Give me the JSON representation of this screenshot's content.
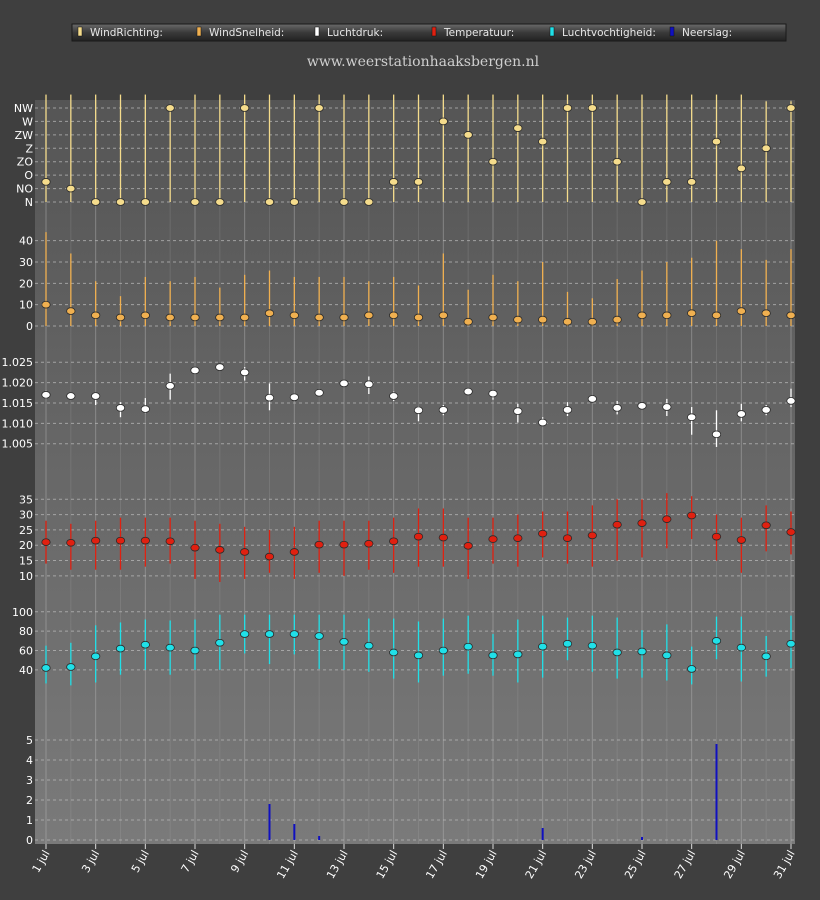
{
  "site_title": "www.weerstationhaaksbergen.nl",
  "legend": [
    {
      "label": "WindRichting:",
      "color": "#f5dc8c"
    },
    {
      "label": "WindSnelheid:",
      "color": "#f0b050"
    },
    {
      "label": "Luchtdruk:",
      "color": "#ffffff"
    },
    {
      "label": "Temperatuur:",
      "color": "#e02010"
    },
    {
      "label": "Luchtvochtigheid:",
      "color": "#20e0e8"
    },
    {
      "label": "Neerslag:",
      "color": "#1010c0"
    }
  ],
  "colors": {
    "background": "#3f3f3f",
    "plot_top": "#555555",
    "plot_bottom": "#7a7a7a",
    "grid": "#b8b8b8"
  },
  "chart_data": {
    "type": "scatter",
    "x_tick_labels": [
      "1 jul",
      "3 jul",
      "5 jul",
      "7 jul",
      "9 jul",
      "11 jul",
      "13 jul",
      "15 jul",
      "17 jul",
      "19 jul",
      "21 jul",
      "23 jul",
      "25 jul",
      "27 jul",
      "29 jul",
      "31 jul"
    ],
    "panels": [
      {
        "series": "WindRichting",
        "color": "#f5dc8c",
        "ticks": [
          "N",
          "NO",
          "O",
          "ZO",
          "Z",
          "ZW",
          "W",
          "NW"
        ],
        "ylim": [
          0,
          7
        ],
        "values": [
          1.5,
          1,
          0,
          0,
          0,
          7,
          0,
          0,
          7,
          0,
          0,
          7,
          0,
          0,
          1.5,
          1.5,
          6,
          5,
          3,
          5.5,
          4.5,
          7,
          7,
          3,
          0,
          1.5,
          1.5,
          4.5,
          2.5,
          4,
          7
        ],
        "high": [
          8,
          8,
          8,
          8,
          8,
          7,
          8,
          8,
          8,
          8,
          8,
          8,
          8,
          8,
          8,
          8,
          8,
          8,
          8,
          8,
          8,
          8,
          8,
          8,
          8,
          8,
          8,
          8,
          8,
          7.5,
          7.5
        ],
        "low": [
          0,
          0,
          0,
          0,
          0,
          0,
          0,
          0,
          0,
          0,
          0,
          0,
          0,
          0,
          0,
          0,
          0,
          0,
          0,
          0,
          0,
          0,
          0,
          0,
          0,
          0,
          0,
          0,
          0,
          0,
          0
        ]
      },
      {
        "series": "WindSnelheid",
        "color": "#f0b050",
        "ticks": [
          "0",
          "10",
          "20",
          "30",
          "40"
        ],
        "ylim": [
          0,
          45
        ],
        "values": [
          10,
          7,
          5,
          4,
          5,
          4,
          4,
          4,
          4,
          6,
          5,
          4,
          4,
          5,
          5,
          4,
          5,
          2,
          4,
          3,
          3,
          2,
          2,
          3,
          5,
          5,
          6,
          5,
          7,
          6,
          5
        ],
        "high": [
          44,
          34,
          21,
          14,
          23,
          21,
          23,
          18,
          24,
          26,
          23,
          23,
          23,
          21,
          23,
          19,
          34,
          17,
          24,
          21,
          30,
          16,
          13,
          22,
          26,
          30,
          32,
          40,
          36,
          31,
          36
        ],
        "low": [
          0,
          0,
          0,
          0,
          0,
          0,
          0,
          0,
          0,
          0,
          0,
          0,
          0,
          0,
          0,
          0,
          0,
          0,
          0,
          0,
          0,
          0,
          0,
          0,
          0,
          0,
          0,
          0,
          0,
          0,
          0
        ]
      },
      {
        "series": "Luchtdruk",
        "color": "#ffffff",
        "ticks": [
          "1.005",
          "1.010",
          "1.015",
          "1.020",
          "1.025"
        ],
        "ylim": [
          1.001,
          1.028
        ],
        "values": [
          1.017,
          1.0167,
          1.0167,
          1.0138,
          1.0135,
          1.0192,
          1.023,
          1.0238,
          1.0225,
          1.0163,
          1.0164,
          1.0175,
          1.0198,
          1.0196,
          1.0167,
          1.0132,
          1.0133,
          1.0178,
          1.0173,
          1.013,
          1.0102,
          1.0133,
          1.016,
          1.0138,
          1.0143,
          1.014,
          1.0115,
          1.0073,
          1.0123,
          1.0133,
          1.0155
        ],
        "high": [
          1.018,
          1.0175,
          1.0175,
          1.0152,
          1.0162,
          1.0222,
          1.0235,
          1.0245,
          1.0238,
          1.0198,
          1.0172,
          1.0182,
          1.0205,
          1.0215,
          1.0178,
          1.0142,
          1.0145,
          1.0182,
          1.0182,
          1.0148,
          1.0115,
          1.0152,
          1.0165,
          1.0155,
          1.0152,
          1.016,
          1.014,
          1.0132,
          1.0148,
          1.0145,
          1.0185
        ],
        "low": [
          1.016,
          1.0158,
          1.0145,
          1.0115,
          1.0125,
          1.0158,
          1.0225,
          1.0232,
          1.0205,
          1.0132,
          1.0155,
          1.0168,
          1.019,
          1.0172,
          1.0155,
          1.0105,
          1.012,
          1.0173,
          1.0158,
          1.0102,
          1.0098,
          1.0118,
          1.0155,
          1.0122,
          1.0135,
          1.0118,
          1.0072,
          1.0042,
          1.0105,
          1.012,
          1.014
        ]
      },
      {
        "series": "Temperatuur",
        "color": "#e02010",
        "ticks": [
          "10",
          "15",
          "20",
          "25",
          "30",
          "35"
        ],
        "ylim": [
          8,
          39
        ],
        "values": [
          21,
          20.8,
          21.5,
          21.5,
          21.5,
          21.3,
          19.2,
          18.5,
          17.8,
          16.3,
          17.8,
          20.2,
          20.2,
          20.5,
          21.3,
          22.8,
          22.5,
          19.8,
          22,
          22.3,
          23.8,
          22.3,
          23.2,
          26.7,
          27.2,
          28.5,
          29.7,
          22.8,
          21.7,
          26.5,
          24.3
        ],
        "high": [
          28,
          27,
          28,
          29,
          29,
          29,
          28,
          27,
          26,
          25,
          26,
          28,
          28,
          28,
          29,
          32,
          32,
          29,
          29,
          30,
          31,
          31,
          33,
          35,
          35,
          37,
          36,
          30,
          29,
          33,
          31
        ],
        "low": [
          14,
          12,
          12,
          12,
          13,
          14,
          9,
          8,
          9,
          11,
          9,
          11,
          10,
          12,
          11,
          13,
          13,
          9,
          14,
          13,
          16,
          14,
          13,
          15,
          16,
          19,
          22,
          15,
          11,
          18,
          17
        ]
      },
      {
        "series": "Luchtvochtigheid",
        "color": "#20e0e8",
        "ticks": [
          "40",
          "60",
          "80",
          "100"
        ],
        "ylim": [
          12,
          107
        ],
        "values": [
          42,
          43,
          54,
          62,
          66,
          63,
          60,
          68,
          77,
          77,
          77,
          75,
          69,
          65,
          58,
          55,
          60,
          64,
          55,
          56,
          64,
          67,
          65,
          58,
          59,
          55,
          41,
          70,
          63,
          54,
          67
        ],
        "high": [
          65,
          68,
          86,
          89,
          92,
          91,
          92,
          97,
          97,
          97,
          97,
          97,
          97,
          93,
          93,
          90,
          93,
          96,
          77,
          92,
          96,
          94,
          96,
          94,
          81,
          87,
          64,
          95,
          95,
          75,
          96
        ],
        "low": [
          26,
          24,
          27,
          35,
          40,
          35,
          40,
          40,
          57,
          46,
          56,
          41,
          40,
          38,
          31,
          27,
          34,
          36,
          34,
          27,
          32,
          50,
          38,
          31,
          32,
          29,
          25,
          51,
          28,
          33,
          42
        ]
      },
      {
        "series": "Neerslag",
        "color": "#1010c0",
        "ticks": [
          "0",
          "1",
          "2",
          "3",
          "4",
          "5"
        ],
        "ylim": [
          -0.05,
          5.6
        ],
        "values": [
          0,
          0,
          0,
          0,
          0,
          0,
          0,
          0,
          0,
          1.8,
          0.8,
          0.2,
          0,
          0,
          0,
          0,
          0,
          0,
          0,
          0,
          0.6,
          0,
          0,
          0,
          0.15,
          0,
          0,
          4.8,
          0,
          0,
          0
        ]
      }
    ]
  }
}
